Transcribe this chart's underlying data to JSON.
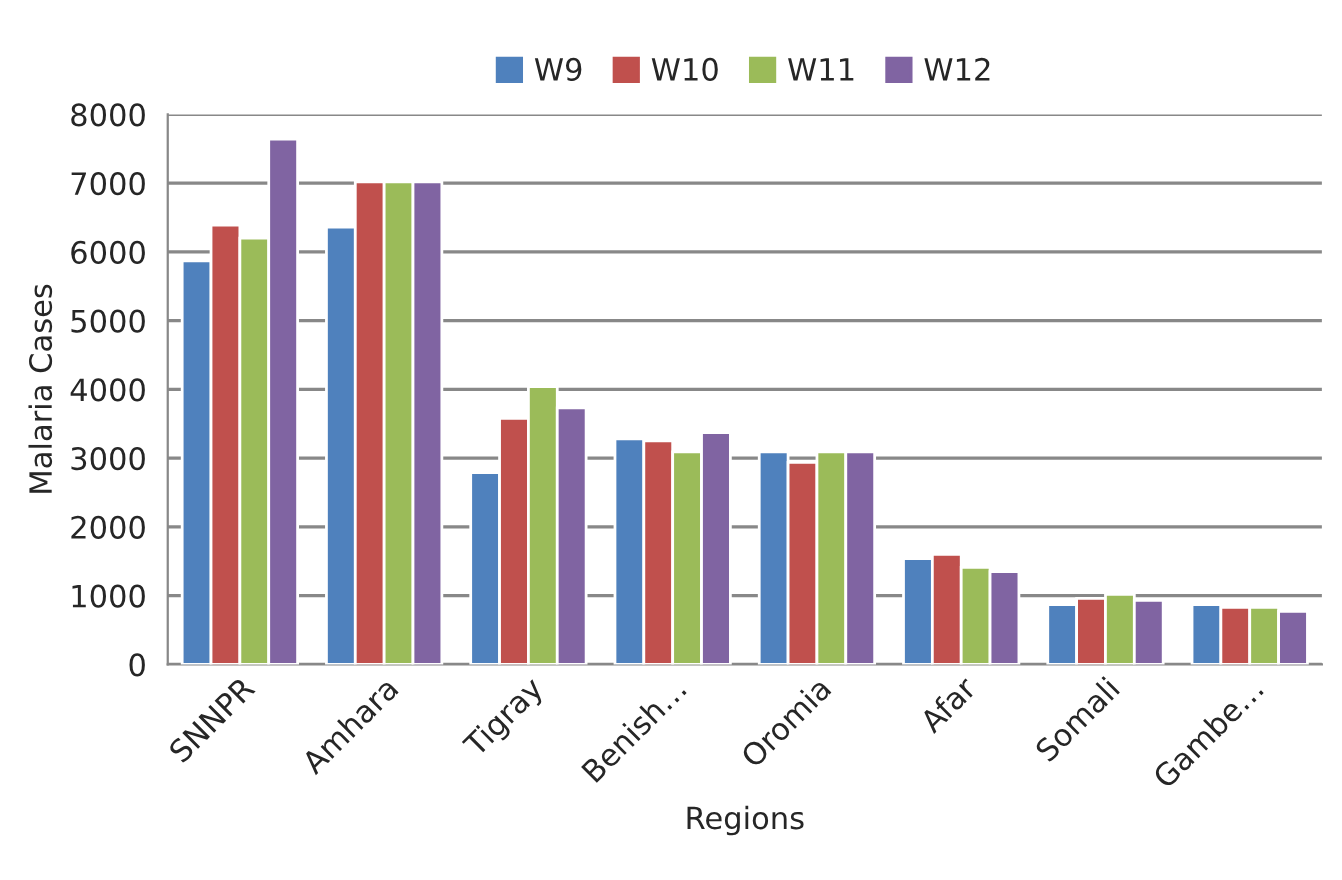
{
  "chart_data": {
    "type": "bar",
    "xlabel": "Regions",
    "ylabel": "Malaria Cases",
    "categories": [
      "SNNPR",
      "Amhara",
      "Tigray",
      "Benish…",
      "Oromia",
      "Afar",
      "Somali",
      "Gambe…"
    ],
    "series": [
      {
        "name": "W9",
        "color": "#4f81bd",
        "values": [
          5870,
          6360,
          2790,
          3280,
          3090,
          1540,
          870,
          870
        ]
      },
      {
        "name": "W10",
        "color": "#c0504d",
        "values": [
          6390,
          7020,
          3580,
          3250,
          2940,
          1600,
          960,
          830
        ]
      },
      {
        "name": "W11",
        "color": "#9bbb59",
        "values": [
          6200,
          7020,
          4040,
          3090,
          3090,
          1410,
          1020,
          830
        ]
      },
      {
        "name": "W12",
        "color": "#8064a2",
        "values": [
          7640,
          7020,
          3730,
          3370,
          3090,
          1350,
          930,
          770
        ]
      }
    ],
    "ylim": [
      0,
      8000
    ],
    "yticks": [
      0,
      1000,
      2000,
      3000,
      4000,
      5000,
      6000,
      7000,
      8000
    ],
    "grid": "y",
    "legend": "top"
  }
}
